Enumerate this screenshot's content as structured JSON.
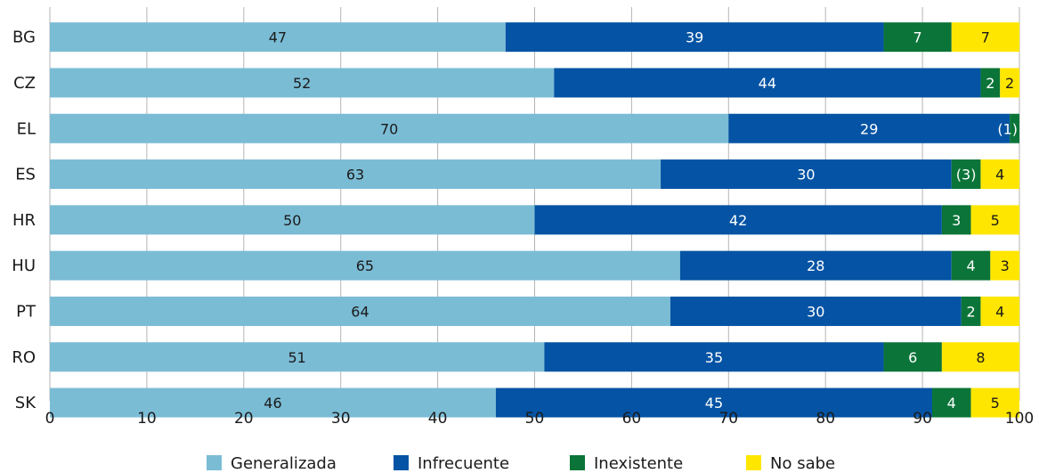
{
  "chart_data": {
    "type": "bar",
    "orientation": "horizontal",
    "stacked": true,
    "categories": [
      "BG",
      "CZ",
      "EL",
      "ES",
      "HR",
      "HU",
      "PT",
      "RO",
      "SK"
    ],
    "series": [
      {
        "name": "Generalizada",
        "color": "#7bbcd5",
        "label_color": "#1a1a1a",
        "values": [
          47,
          52,
          70,
          63,
          50,
          65,
          64,
          51,
          46
        ],
        "labels": [
          "47",
          "52",
          "70",
          "63",
          "50",
          "65",
          "64",
          "51",
          "46"
        ]
      },
      {
        "name": "Infrecuente",
        "color": "#0453a4",
        "label_color": "#ffffff",
        "values": [
          39,
          44,
          29,
          30,
          42,
          28,
          30,
          35,
          45
        ],
        "labels": [
          "39",
          "44",
          "29",
          "30",
          "42",
          "28",
          "30",
          "35",
          "45"
        ]
      },
      {
        "name": "Inexistente",
        "color": "#0b7438",
        "label_color": "#ffffff",
        "values": [
          7,
          2,
          1,
          3,
          3,
          4,
          2,
          6,
          4
        ],
        "labels": [
          "7",
          "2",
          "(1)",
          "(3)",
          "3",
          "4",
          "2",
          "6",
          "4"
        ]
      },
      {
        "name": "No sabe",
        "color": "#ffe600",
        "label_color": "#1a1a1a",
        "values": [
          7,
          2,
          0,
          4,
          5,
          3,
          4,
          8,
          5
        ],
        "labels": [
          "7",
          "2",
          "",
          "4",
          "5",
          "3",
          "4",
          "8",
          "5"
        ]
      }
    ],
    "xlim": [
      0,
      100
    ],
    "xticks": [
      "0",
      "10",
      "20",
      "30",
      "40",
      "50",
      "60",
      "70",
      "80",
      "90",
      "100"
    ],
    "grid": true,
    "legend_position": "bottom"
  }
}
